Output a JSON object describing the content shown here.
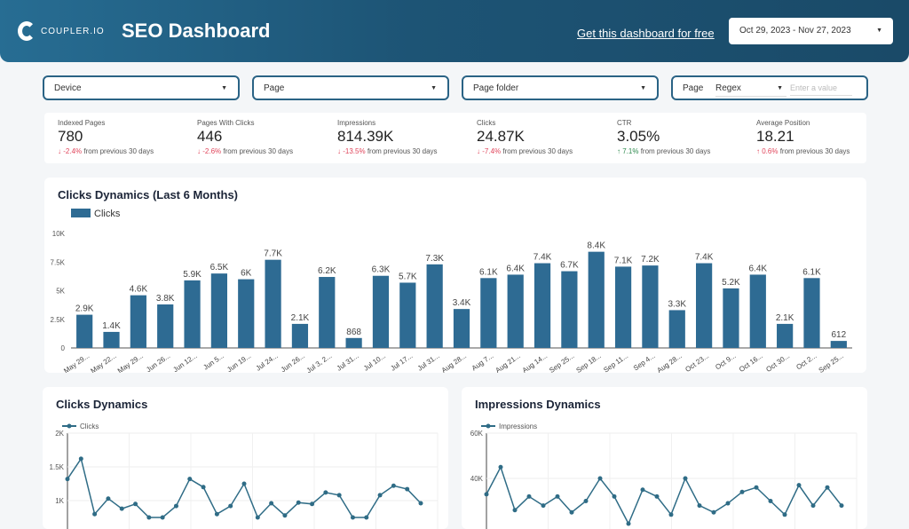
{
  "header": {
    "brand": "COUPLER.IO",
    "title": "SEO Dashboard",
    "cta": "Get this dashboard for free",
    "date_range": "Oct 29, 2023 - Nov 27, 2023"
  },
  "filters": [
    {
      "label": "Device"
    },
    {
      "label": "Page"
    },
    {
      "label": "Page folder"
    }
  ],
  "regex_filter": {
    "label": "Page",
    "mode": "Regex",
    "placeholder": "Enter a value"
  },
  "kpis": [
    {
      "label": "Indexed Pages",
      "value": "780",
      "delta": "-2.4%",
      "dir": "down",
      "suffix": "from previous 30 days"
    },
    {
      "label": "Pages With Clicks",
      "value": "446",
      "delta": "-2.6%",
      "dir": "down",
      "suffix": "from previous 30 days"
    },
    {
      "label": "Impressions",
      "value": "814.39K",
      "delta": "-13.5%",
      "dir": "down",
      "suffix": "from previous 30 days"
    },
    {
      "label": "Clicks",
      "value": "24.87K",
      "delta": "-7.4%",
      "dir": "down",
      "suffix": "from previous 30 days"
    },
    {
      "label": "CTR",
      "value": "3.05%",
      "delta": "7.1%",
      "dir": "up",
      "suffix": "from previous 30 days"
    },
    {
      "label": "Average Position",
      "value": "18.21",
      "delta": "0.6%",
      "dir": "up",
      "suffix": "from previous 30 days"
    }
  ],
  "colors": {
    "bar": "#2e6b93",
    "line": "#2f6c86",
    "negative": "#e0445a",
    "positive": "#2d8a4e"
  },
  "chart_data": [
    {
      "type": "bar",
      "title": "Clicks Dynamics (Last 6 Months)",
      "legend": [
        "Clicks"
      ],
      "legend_position": "top-left",
      "ylim": [
        0,
        10000
      ],
      "yticks": [
        "0",
        "2.5K",
        "5K",
        "7.5K",
        "10K"
      ],
      "categories": [
        "May 29...",
        "May 22...",
        "May 29...",
        "Jun 26...",
        "Jun 12...",
        "Jun 5...",
        "Jun 19...",
        "Jul 24...",
        "Jun 26...",
        "Jul 3, 2...",
        "Jul 31...",
        "Jul 10...",
        "Jul 17...",
        "Jul 31...",
        "Aug 28...",
        "Aug 7...",
        "Aug 21...",
        "Aug 14...",
        "Sep 25...",
        "Sep 18...",
        "Sep 11...",
        "Sep 4...",
        "Aug 28...",
        "Oct 23...",
        "Oct 9...",
        "Oct 16...",
        "Oct 30...",
        "Oct 2...",
        "Sep 25..."
      ],
      "values": [
        2900,
        1400,
        4600,
        3800,
        5900,
        6500,
        6000,
        7700,
        2100,
        6200,
        868,
        6300,
        5700,
        7300,
        3400,
        6100,
        6400,
        7400,
        6700,
        8400,
        7100,
        7200,
        3300,
        7400,
        5200,
        6400,
        2100,
        6100,
        612
      ],
      "labels": [
        "2.9K",
        "1.4K",
        "4.6K",
        "3.8K",
        "5.9K",
        "6.5K",
        "6K",
        "7.7K",
        "2.1K",
        "6.2K",
        "868",
        "6.3K",
        "5.7K",
        "7.3K",
        "3.4K",
        "6.1K",
        "6.4K",
        "7.4K",
        "6.7K",
        "8.4K",
        "7.1K",
        "7.2K",
        "3.3K",
        "7.4K",
        "5.2K",
        "6.4K",
        "2.1K",
        "6.1K",
        "612"
      ]
    },
    {
      "type": "line",
      "title": "Clicks Dynamics",
      "legend": [
        "Clicks"
      ],
      "yticks": [
        "1K",
        "1.5K",
        "2K"
      ],
      "ylim": [
        0,
        2000
      ],
      "grid": true,
      "values": [
        1320,
        1620,
        800,
        1030,
        880,
        950,
        750,
        750,
        920,
        1320,
        1200,
        800,
        920,
        1250,
        750,
        960,
        780,
        970,
        950,
        1120,
        1080,
        750,
        750,
        1080,
        1220,
        1170,
        960
      ]
    },
    {
      "type": "line",
      "title": "Impressions Dynamics",
      "legend": [
        "Impressions"
      ],
      "yticks": [
        "40K",
        "60K"
      ],
      "ylim": [
        0,
        60000
      ],
      "grid": true,
      "values": [
        33000,
        45000,
        26000,
        32000,
        28000,
        32000,
        25000,
        30000,
        40000,
        32000,
        20000,
        35000,
        32000,
        24000,
        40000,
        28000,
        25000,
        29000,
        34000,
        36000,
        30000,
        24000,
        37000,
        28000,
        36000,
        28000
      ]
    }
  ]
}
